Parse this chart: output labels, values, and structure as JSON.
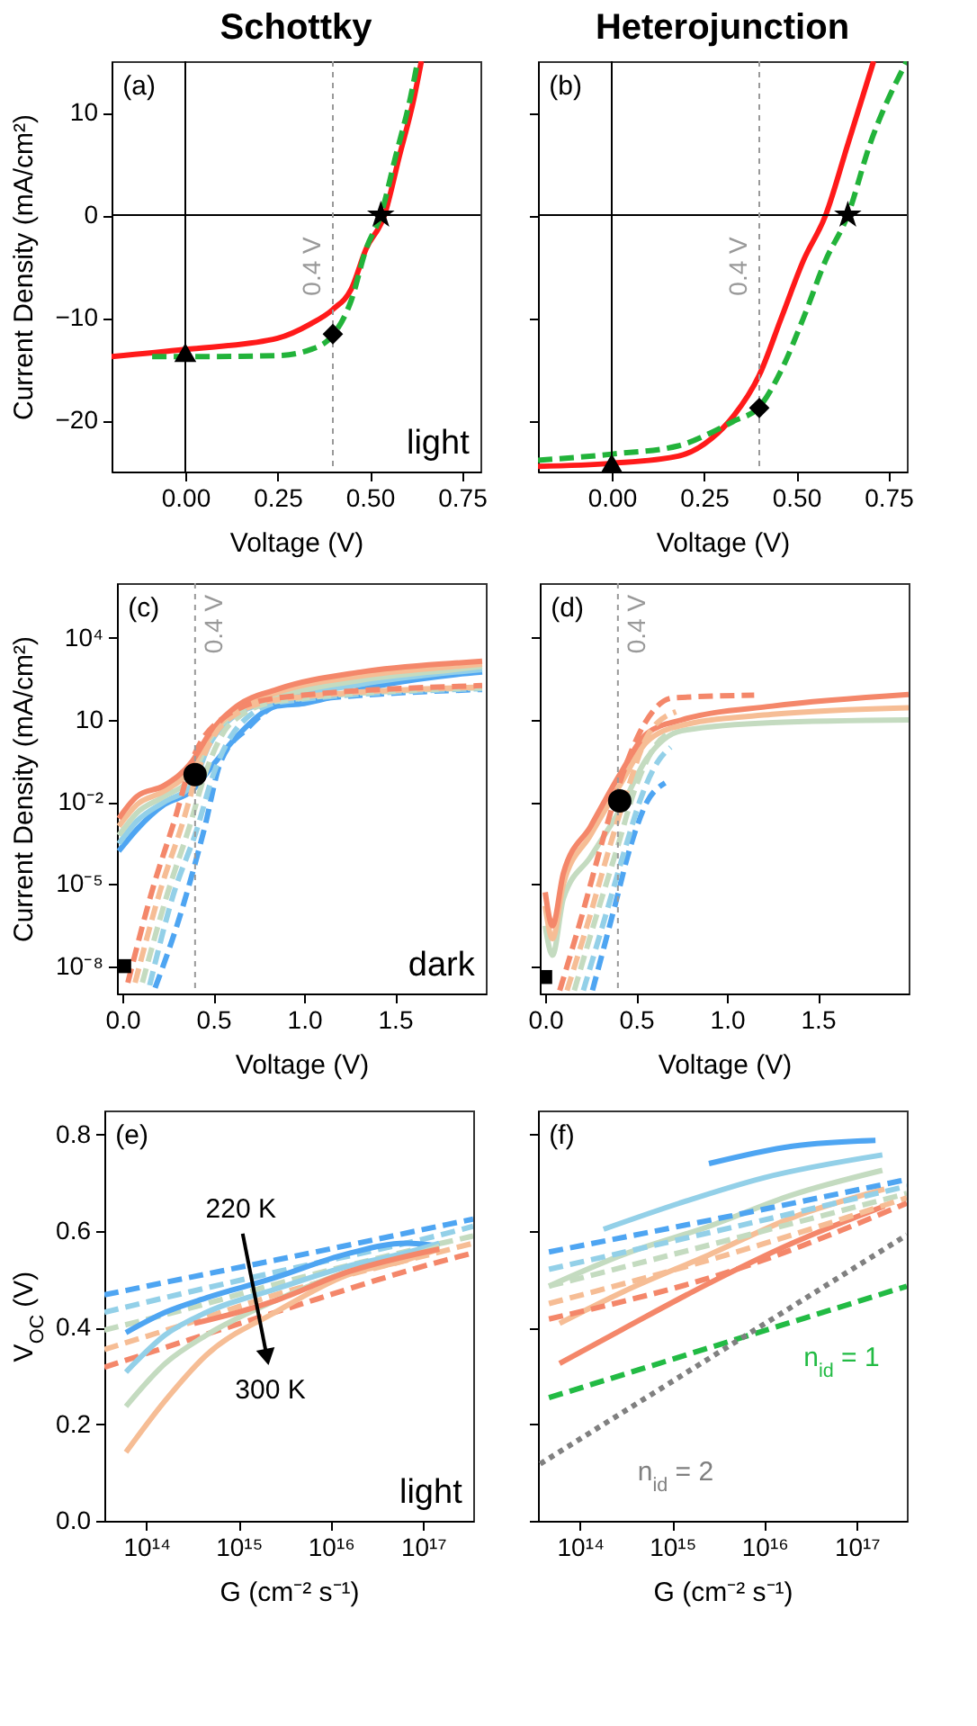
{
  "chart_data": [
    {
      "type": "line",
      "title": "Schottky",
      "xlabel": "Voltage (V)",
      "ylabel": "Current Density (mA/cm²)",
      "xlim": [
        -0.2,
        0.8
      ],
      "ylim": [
        -25,
        15
      ],
      "xticks": [
        {
          "value": 0,
          "label": "0.00"
        },
        0.25,
        {
          "value": 0.5,
          "label": "0.50"
        },
        0.75
      ],
      "yticks": [
        {
          "value": -20,
          "label": "−20"
        },
        {
          "value": -10,
          "label": "−10"
        },
        0,
        10
      ],
      "annotations": [
        "(a)",
        "light"
      ],
      "ref_lines": [
        {
          "axis": "x",
          "value": 0,
          "color": "#000000",
          "line_style": "solid"
        },
        {
          "axis": "y",
          "value": 0,
          "color": "#000000",
          "line_style": "solid"
        },
        {
          "axis": "x",
          "value": 0.4,
          "label": "0.4 V",
          "color": "#999999",
          "line_style": "dotted"
        }
      ],
      "series": [
        {
          "color": "#ff1a1a",
          "line_style": "solid",
          "x": [
            -0.2,
            0,
            0.25,
            0.34,
            0.4,
            0.45,
            0.49,
            0.54,
            0.58,
            0.62,
            0.64
          ],
          "values": [
            -13.8,
            -13.1,
            -12.0,
            -10.6,
            -9.2,
            -7.2,
            -3.3,
            0,
            5.7,
            11.4,
            15
          ]
        },
        {
          "color": "#22b33a",
          "line_style": "dashed",
          "x": [
            -0.09,
            0,
            0.25,
            0.34,
            0.4,
            0.45,
            0.49,
            0.53,
            0.57,
            0.61,
            0.63
          ],
          "values": [
            -13.8,
            -13.8,
            -13.7,
            -13.1,
            -11.7,
            -8.3,
            -3.3,
            0,
            5.7,
            11.4,
            15
          ]
        },
        {
          "type": "scatter",
          "marker": "triangle",
          "color": "#000000",
          "x": [
            0
          ],
          "values": [
            -13.4
          ]
        },
        {
          "type": "scatter",
          "marker": "diamond",
          "color": "#000000",
          "x": [
            0.4
          ],
          "values": [
            -11.6
          ]
        },
        {
          "type": "scatter",
          "marker": "star",
          "color": "#000000",
          "x": [
            0.53
          ],
          "values": [
            0
          ]
        }
      ]
    },
    {
      "type": "line",
      "title": "Heterojunction",
      "xlabel": "Voltage (V)",
      "xlim": [
        -0.2,
        0.8
      ],
      "ylim": [
        -25,
        15
      ],
      "tick_labels": "x",
      "xticks": [
        {
          "value": 0,
          "label": "0.00"
        },
        0.25,
        {
          "value": 0.5,
          "label": "0.50"
        },
        0.75
      ],
      "yticks": [
        -20,
        -10,
        0,
        10
      ],
      "annotations": [
        "(b)"
      ],
      "ref_lines": [
        {
          "axis": "x",
          "value": 0,
          "color": "#000000",
          "line_style": "solid"
        },
        {
          "axis": "y",
          "value": 0,
          "color": "#000000",
          "line_style": "solid"
        },
        {
          "axis": "x",
          "value": 0.4,
          "label": "0.4 V",
          "color": "#999999",
          "line_style": "dotted"
        }
      ],
      "series": [
        {
          "color": "#ff1a1a",
          "line_style": "solid",
          "x": [
            -0.2,
            0,
            0.18,
            0.27,
            0.33,
            0.4,
            0.46,
            0.52,
            0.58,
            0.64,
            0.71
          ],
          "values": [
            -24.5,
            -24.2,
            -23.5,
            -21.8,
            -19.6,
            -15.6,
            -10,
            -4.4,
            0,
            6.9,
            15
          ]
        },
        {
          "color": "#22b33a",
          "line_style": "dashed",
          "x": [
            -0.2,
            0,
            0.18,
            0.27,
            0.33,
            0.4,
            0.46,
            0.52,
            0.58,
            0.64,
            0.7,
            0.8
          ],
          "values": [
            -23.9,
            -23.3,
            -22.5,
            -21.2,
            -20.1,
            -18.7,
            -15.1,
            -10,
            -4.4,
            0,
            6.9,
            15
          ]
        },
        {
          "type": "scatter",
          "marker": "triangle",
          "color": "#000000",
          "x": [
            0
          ],
          "values": [
            -24.2
          ]
        },
        {
          "type": "scatter",
          "marker": "diamond",
          "color": "#000000",
          "x": [
            0.4
          ],
          "values": [
            -18.8
          ]
        },
        {
          "type": "scatter",
          "marker": "star",
          "color": "#000000",
          "x": [
            0.64
          ],
          "values": [
            0
          ]
        }
      ]
    },
    {
      "type": "line",
      "xlabel": "Voltage (V)",
      "ylabel": "Current Density (mA/cm²)",
      "log": "y",
      "xlim": [
        -0.03,
        2.0
      ],
      "ylim": [
        1e-09,
        1000000.0
      ],
      "xticks": [
        {
          "value": 0,
          "label": "0.0"
        },
        0.5,
        {
          "value": 1,
          "label": "1.0"
        },
        1.5
      ],
      "yticks": [
        {
          "value": 10000,
          "label": "10⁴"
        },
        10,
        {
          "value": 0.01,
          "label": "10⁻²"
        },
        {
          "value": 1e-05,
          "label": "10⁻⁵"
        },
        {
          "value": 1e-08,
          "label": "10⁻⁸"
        }
      ],
      "annotations": [
        "(c)",
        "dark"
      ],
      "ref_lines": [
        {
          "axis": "x",
          "value": 0.4,
          "label": "0.4 V",
          "color": "#999999",
          "line_style": "dotted"
        }
      ],
      "series": [
        {
          "color": "#4ea5f2",
          "line_style": "solid",
          "x": [
            -0.02,
            0.08,
            0.23,
            0.38,
            0.51,
            0.63,
            0.85,
            1.0,
            1.31,
            1.83,
            1.98
          ],
          "values": [
            0.00016,
            0.001,
            0.008,
            0.025,
            0.28,
            2.5,
            32,
            40,
            130,
            450,
            560
          ]
        },
        {
          "color": "#93d0e8",
          "line_style": "solid",
          "x": [
            -0.02,
            0.08,
            0.23,
            0.38,
            0.48,
            0.63,
            0.85,
            1.31,
            1.83,
            1.98
          ],
          "values": [
            0.0003,
            0.002,
            0.01,
            0.04,
            1.3,
            16,
            50,
            200,
            560,
            700
          ]
        },
        {
          "color": "#c4dbc0",
          "line_style": "solid",
          "x": [
            -0.02,
            0.08,
            0.23,
            0.38,
            0.48,
            0.63,
            0.85,
            1.31,
            1.83,
            1.98
          ],
          "values": [
            0.0006,
            0.004,
            0.016,
            0.08,
            2,
            20,
            70,
            280,
            700,
            900
          ]
        },
        {
          "color": "#f6bd95",
          "line_style": "solid",
          "x": [
            -0.02,
            0.08,
            0.23,
            0.38,
            0.48,
            0.63,
            0.85,
            1.31,
            1.83,
            1.98
          ],
          "values": [
            0.0013,
            0.008,
            0.025,
            0.16,
            2.5,
            25,
            100,
            400,
            900,
            1100
          ]
        },
        {
          "color": "#f4876a",
          "line_style": "solid",
          "x": [
            -0.02,
            0.08,
            0.23,
            0.38,
            0.48,
            0.63,
            0.85,
            1.31,
            1.83,
            1.98
          ],
          "values": [
            0.0025,
            0.016,
            0.04,
            0.28,
            3.2,
            32,
            130,
            560,
            1200,
            1400
          ]
        },
        {
          "color": "#4ea5f2",
          "line_style": "dashed",
          "x": [
            0.18,
            0.32,
            0.45,
            0.54,
            0.69,
            0.88,
            1.98
          ],
          "values": [
            1.6e-09,
            8e-07,
            0.001,
            0.28,
            5,
            40,
            130
          ]
        },
        {
          "color": "#93d0e8",
          "line_style": "dashed",
          "x": [
            0.15,
            0.28,
            0.41,
            0.5,
            0.64,
            0.87,
            1.98
          ],
          "values": [
            2e-09,
            4e-06,
            0.001,
            0.1,
            6,
            45,
            140
          ]
        },
        {
          "color": "#c4dbc0",
          "line_style": "dashed",
          "x": [
            0.11,
            0.25,
            0.37,
            0.46,
            0.6,
            0.87,
            1.98
          ],
          "values": [
            2.5e-09,
            5e-06,
            0.0013,
            0.13,
            8,
            50,
            150
          ]
        },
        {
          "color": "#f6bd95",
          "line_style": "dashed",
          "x": [
            0.07,
            0.21,
            0.33,
            0.42,
            0.57,
            0.86,
            1.98
          ],
          "values": [
            2.5e-09,
            6.3e-06,
            0.0016,
            0.16,
            9,
            56,
            160
          ]
        },
        {
          "color": "#f4876a",
          "line_style": "dashed",
          "x": [
            0.03,
            0.17,
            0.29,
            0.38,
            0.54,
            0.85,
            1.98
          ],
          "values": [
            2.5e-09,
            8e-06,
            0.0025,
            0.28,
            10,
            63,
            180
          ]
        },
        {
          "type": "scatter",
          "marker": "circle",
          "color": "#000000",
          "x": [
            0.4
          ],
          "values": [
            0.1
          ]
        },
        {
          "type": "scatter",
          "marker": "square",
          "color": "#000000",
          "x": [
            0.01
          ],
          "values": [
            1e-08
          ]
        }
      ]
    },
    {
      "type": "line",
      "xlabel": "Voltage (V)",
      "log": "y",
      "xlim": [
        -0.03,
        2.0
      ],
      "ylim": [
        1e-09,
        1000000.0
      ],
      "tick_labels": "x",
      "xticks": [
        {
          "value": 0,
          "label": "0.0"
        },
        0.5,
        {
          "value": 1,
          "label": "1.0"
        },
        1.5
      ],
      "yticks": [
        10000,
        10,
        0.01,
        1e-05,
        1e-08
      ],
      "annotations": [
        "(d)"
      ],
      "ref_lines": [
        {
          "axis": "x",
          "value": 0.4,
          "label": "0.4 V",
          "color": "#999999",
          "line_style": "dotted"
        }
      ],
      "series": [
        {
          "color": "#c4dbc0",
          "line_style": "solid",
          "x": [
            0,
            0.04,
            0.1,
            0.25,
            0.41,
            0.56,
            0.75,
            1.25,
            2.0
          ],
          "values": [
            3e-07,
            2.5e-08,
            3e-06,
            0.0001,
            0.005,
            0.4,
            4,
            8,
            10
          ]
        },
        {
          "color": "#f6bd95",
          "line_style": "solid",
          "x": [
            0,
            0.04,
            0.1,
            0.25,
            0.41,
            0.56,
            0.75,
            1.25,
            2.0
          ],
          "values": [
            1.6e-06,
            1e-07,
            1e-05,
            0.00063,
            0.04,
            1.6,
            6.3,
            16,
            28
          ]
        },
        {
          "color": "#f4876a",
          "line_style": "solid",
          "x": [
            0,
            0.04,
            0.1,
            0.25,
            0.41,
            0.56,
            0.75,
            1.25,
            2.0
          ],
          "values": [
            5e-06,
            3e-07,
            2.5e-05,
            0.0013,
            0.1,
            3.2,
            10,
            32,
            85
          ]
        },
        {
          "color": "#4ea5f2",
          "line_style": "dashed",
          "x": [
            0.26,
            0.38,
            0.47,
            0.56,
            0.66
          ],
          "values": [
            1.3e-09,
            1.3e-06,
            0.00025,
            0.01,
            0.05
          ]
        },
        {
          "color": "#93d0e8",
          "line_style": "dashed",
          "x": [
            0.21,
            0.33,
            0.44,
            0.53,
            0.62,
            0.69
          ],
          "values": [
            1.3e-09,
            6.3e-07,
            0.0002,
            0.016,
            0.3,
            1
          ]
        },
        {
          "color": "#c4dbc0",
          "line_style": "dashed",
          "x": [
            0.16,
            0.28,
            0.4,
            0.49,
            0.6,
            0.7
          ],
          "values": [
            1.3e-09,
            6.3e-07,
            0.00025,
            0.025,
            1,
            4
          ]
        },
        {
          "color": "#f6bd95",
          "line_style": "dashed",
          "x": [
            0.12,
            0.24,
            0.36,
            0.45,
            0.57,
            0.72
          ],
          "values": [
            1.3e-09,
            5e-07,
            0.0003,
            0.025,
            3.2,
            20
          ]
        },
        {
          "color": "#f4876a",
          "line_style": "dashed",
          "x": [
            0.08,
            0.2,
            0.32,
            0.41,
            0.55,
            0.7,
            1.15
          ],
          "values": [
            1.3e-09,
            6.3e-07,
            0.0005,
            0.05,
            8,
            63,
            80
          ]
        },
        {
          "type": "scatter",
          "marker": "circle",
          "color": "#000000",
          "x": [
            0.41
          ],
          "values": [
            0.011
          ]
        },
        {
          "type": "scatter",
          "marker": "square",
          "color": "#000000",
          "x": [
            0
          ],
          "values": [
            4e-09
          ]
        }
      ]
    },
    {
      "type": "line",
      "xlabel": "G (cm⁻² s⁻¹)",
      "ylabel": "V$_{OC}$ (V)",
      "log": "x",
      "xlim": [
        35000000000000.0,
        3.5e+17
      ],
      "ylim": [
        0,
        0.85
      ],
      "xticks": [
        {
          "value": 100000000000000.0,
          "label": "10¹⁴"
        },
        {
          "value": 1000000000000000.0,
          "label": "10¹⁵"
        },
        {
          "value": 1e+16,
          "label": "10¹⁶"
        },
        {
          "value": 1e+17,
          "label": "10¹⁷"
        }
      ],
      "yticks": [
        {
          "value": 0,
          "label": "0.0"
        },
        0.2,
        0.4,
        0.6,
        0.8
      ],
      "annotations": [
        "(e)",
        "220 K",
        "300 K",
        "light"
      ],
      "series": [
        {
          "color": "#4ea5f2",
          "line_style": "dashed",
          "x": [
            35000000000000.0,
            290000000000000.0,
            2500000000000000.0,
            1.75e+17,
            3.5e+17
          ],
          "values": [
            0.468,
            0.504,
            0.54,
            0.613,
            0.625
          ]
        },
        {
          "color": "#93d0e8",
          "line_style": "dashed",
          "x": [
            35000000000000.0,
            290000000000000.0,
            2500000000000000.0,
            1.75e+17,
            3.5e+17
          ],
          "values": [
            0.432,
            0.474,
            0.515,
            0.595,
            0.61
          ]
        },
        {
          "color": "#c4dbc0",
          "line_style": "dashed",
          "x": [
            35000000000000.0,
            290000000000000.0,
            2500000000000000.0,
            1.75e+17,
            3.5e+17
          ],
          "values": [
            0.395,
            0.44,
            0.49,
            0.577,
            0.59
          ]
        },
        {
          "color": "#f6bd95",
          "line_style": "dashed",
          "x": [
            35000000000000.0,
            290000000000000.0,
            2500000000000000.0,
            1.75e+17,
            3.5e+17
          ],
          "values": [
            0.355,
            0.41,
            0.468,
            0.56,
            0.575
          ]
        },
        {
          "color": "#f4876a",
          "line_style": "dashed",
          "x": [
            35000000000000.0,
            290000000000000.0,
            2500000000000000.0,
            1.75e+17,
            3.5e+17
          ],
          "values": [
            0.318,
            0.375,
            0.432,
            0.54,
            0.555
          ]
        },
        {
          "color": "#4ea5f2",
          "line_style": "solid",
          "x": [
            60000000000000.0,
            160000000000000.0,
            450000000000000.0,
            2500000000000000.0,
            1.5e+16,
            6.5e+16,
            1.5e+17
          ],
          "values": [
            0.39,
            0.432,
            0.462,
            0.504,
            0.553,
            0.575,
            0.569
          ]
        },
        {
          "color": "#93d0e8",
          "line_style": "solid",
          "x": [
            60000000000000.0,
            160000000000000.0,
            450000000000000.0,
            2500000000000000.0,
            1.5e+16,
            6.5e+16,
            1.5e+17
          ],
          "values": [
            0.308,
            0.385,
            0.432,
            0.48,
            0.527,
            0.555,
            0.575
          ]
        },
        {
          "color": "#c4dbc0",
          "line_style": "solid",
          "x": [
            60000000000000.0,
            160000000000000.0,
            450000000000000.0,
            2500000000000000.0,
            1.5e+16,
            6.5e+16,
            1.5e+17
          ],
          "values": [
            0.237,
            0.326,
            0.385,
            0.456,
            0.515,
            0.545,
            0.569
          ]
        },
        {
          "color": "#f6bd95",
          "line_style": "solid",
          "x": [
            60000000000000.0,
            160000000000000.0,
            450000000000000.0,
            2500000000000000.0,
            1.5e+16,
            6.5e+16,
            1.5e+17
          ],
          "values": [
            0.142,
            0.249,
            0.344,
            0.432,
            0.509,
            0.54,
            0.563
          ]
        },
        {
          "color": "#f4876a",
          "line_style": "solid",
          "x": [
            330000000000000.0,
            900000000000000.0,
            2500000000000000.0,
            1.5e+16,
            1.5e+17
          ],
          "values": [
            0.409,
            0.43,
            0.456,
            0.515,
            0.563
          ]
        }
      ]
    },
    {
      "type": "line",
      "xlabel": "G (cm⁻² s⁻¹)",
      "log": "x",
      "xlim": [
        35000000000000.0,
        3.5e+17
      ],
      "ylim": [
        0,
        0.85
      ],
      "tick_labels": "x",
      "xticks": [
        {
          "value": 100000000000000.0,
          "label": "10¹⁴"
        },
        {
          "value": 1000000000000000.0,
          "label": "10¹⁵"
        },
        {
          "value": 1e+16,
          "label": "10¹⁶"
        },
        {
          "value": 1e+17,
          "label": "10¹⁷"
        }
      ],
      "yticks": [
        0,
        0.2,
        0.4,
        0.6,
        0.8
      ],
      "annotations": [
        "(f)"
      ],
      "series": [
        {
          "color": "#4ea5f2",
          "line_style": "solid",
          "x": [
            2500000000000000.0,
            2e+16,
            1.6e+17
          ],
          "values": [
            0.74,
            0.776,
            0.788
          ]
        },
        {
          "color": "#93d0e8",
          "line_style": "solid",
          "x": [
            180000000000000.0,
            1200000000000000.0,
            1e+16,
            1.9e+17
          ],
          "values": [
            0.604,
            0.658,
            0.711,
            0.758
          ]
        },
        {
          "color": "#c4dbc0",
          "line_style": "solid",
          "x": [
            46000000000000.0,
            290000000000000.0,
            2500000000000000.0,
            2e+16,
            1.9e+17
          ],
          "values": [
            0.486,
            0.551,
            0.61,
            0.675,
            0.726
          ]
        },
        {
          "color": "#f6bd95",
          "line_style": "solid",
          "x": [
            60000000000000.0,
            290000000000000.0,
            2500000000000000.0,
            2e+16,
            2e+17
          ],
          "values": [
            0.409,
            0.474,
            0.551,
            0.628,
            0.687
          ]
        },
        {
          "color": "#f4876a",
          "line_style": "solid",
          "x": [
            60000000000000.0,
            290000000000000.0,
            2500000000000000.0,
            2e+16,
            2e+17
          ],
          "values": [
            0.326,
            0.397,
            0.492,
            0.575,
            0.652
          ]
        },
        {
          "color": "#4ea5f2",
          "line_style": "dashed",
          "x": [
            46000000000000.0,
            5000000000000000.0,
            3.5e+17
          ],
          "values": [
            0.557,
            0.634,
            0.707
          ]
        },
        {
          "color": "#93d0e8",
          "line_style": "dashed",
          "x": [
            46000000000000.0,
            5000000000000000.0,
            3.5e+17
          ],
          "values": [
            0.521,
            0.61,
            0.693
          ]
        },
        {
          "color": "#c4dbc0",
          "line_style": "dashed",
          "x": [
            46000000000000.0,
            5000000000000000.0,
            3.5e+17
          ],
          "values": [
            0.486,
            0.586,
            0.678
          ]
        },
        {
          "color": "#f6bd95",
          "line_style": "dashed",
          "x": [
            46000000000000.0,
            5000000000000000.0,
            3.5e+17
          ],
          "values": [
            0.45,
            0.557,
            0.669
          ]
        },
        {
          "color": "#f4876a",
          "line_style": "dashed",
          "x": [
            46000000000000.0,
            5000000000000000.0,
            3.5e+17
          ],
          "values": [
            0.418,
            0.521,
            0.658
          ]
        },
        {
          "name": "n$_{id}$ = 1",
          "color": "#22bb44",
          "line_style": "dashed",
          "x": [
            46000000000000.0,
            3.5e+17
          ],
          "values": [
            0.255,
            0.486
          ]
        },
        {
          "name": "n$_{id}$ = 2",
          "color": "#808080",
          "line_style": "dotted",
          "x": [
            37000000000000.0,
            3.5e+17
          ],
          "values": [
            0.118,
            0.592
          ]
        }
      ]
    }
  ]
}
